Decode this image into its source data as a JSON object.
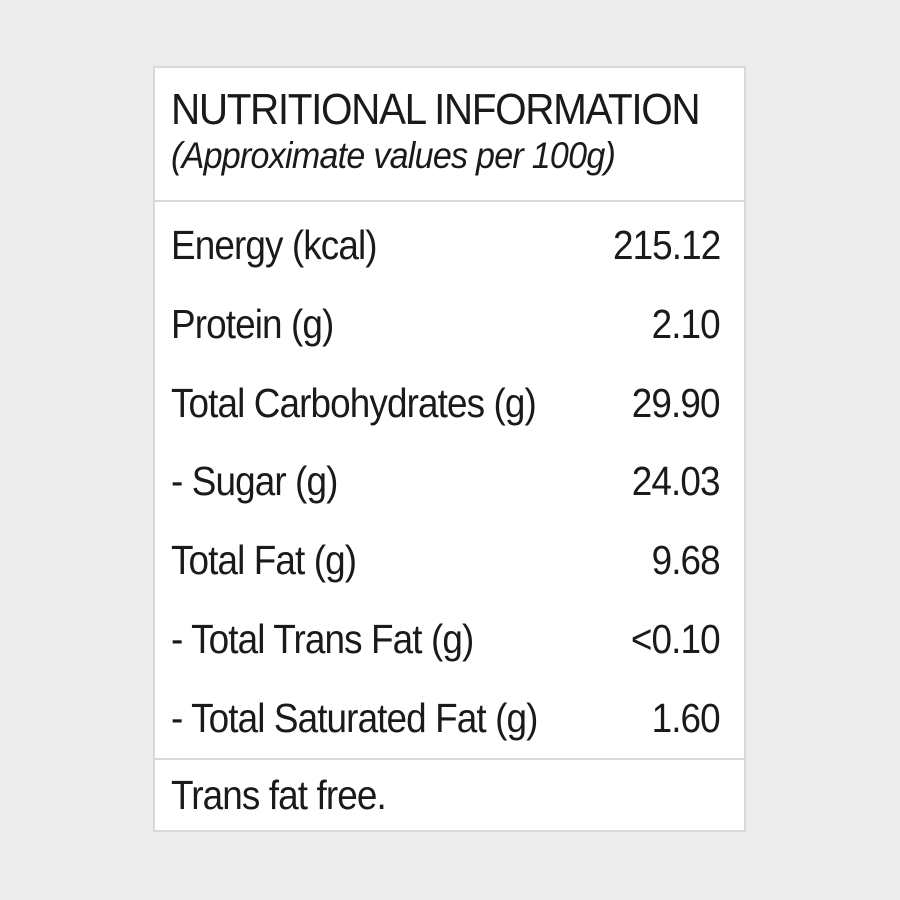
{
  "label": {
    "title": "NUTRITIONAL INFORMATION",
    "subtitle": "(Approximate values per 100g)",
    "rows": [
      {
        "name": "Energy (kcal)",
        "value": "215.12"
      },
      {
        "name": "Protein (g)",
        "value": "2.10"
      },
      {
        "name": "Total Carbohydrates (g)",
        "value": "29.90"
      },
      {
        "name": "- Sugar (g)",
        "value": "24.03"
      },
      {
        "name": "Total Fat (g)",
        "value": "9.68"
      },
      {
        "name": "- Total Trans Fat (g)",
        "value": "<0.10"
      },
      {
        "name": "- Total Saturated Fat (g)",
        "value": "1.60"
      }
    ],
    "footer": "Trans fat free."
  },
  "colors": {
    "page_background": "#ececec",
    "panel_background": "#ffffff",
    "border": "#d9d9d9",
    "text": "#1a1a1a"
  }
}
